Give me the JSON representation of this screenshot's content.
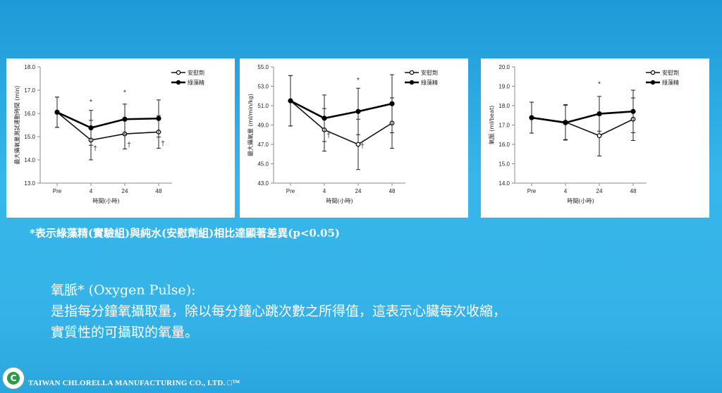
{
  "chart_data": [
    {
      "type": "line",
      "ylabel": "最大攝氧量測試運動時間 (min)",
      "xlabel": "時間(小時)",
      "categories": [
        "Pre",
        "4",
        "24",
        "48"
      ],
      "ylim": [
        13.0,
        18.0
      ],
      "yticks": [
        "13.0",
        "14.0",
        "15.0",
        "16.0",
        "17.0",
        "18.0"
      ],
      "legend_position": "top-right",
      "series": [
        {
          "name": "安慰劑",
          "marker": "open-circle",
          "values": [
            16.05,
            14.85,
            15.12,
            15.2
          ],
          "err": [
            0.65,
            0.85,
            0.65,
            0.7
          ]
        },
        {
          "name": "綠藻精",
          "marker": "filled-circle",
          "values": [
            16.05,
            15.38,
            15.75,
            15.78
          ],
          "err": [
            0.65,
            0.75,
            0.65,
            0.8
          ]
        }
      ],
      "annotations": [
        {
          "text": "*",
          "x": "4",
          "y": 16.4
        },
        {
          "text": "*",
          "x": "24",
          "y": 16.8
        },
        {
          "text": "†",
          "x": "4",
          "y": 14.4
        },
        {
          "text": "†",
          "x": "24",
          "y": 14.55
        },
        {
          "text": "†",
          "x": "48",
          "y": 14.6
        }
      ]
    },
    {
      "type": "line",
      "ylabel": "最大攝氧量 (ml/min/kg)",
      "xlabel": "時間(小時)",
      "categories": [
        "Pre",
        "4",
        "24",
        "48"
      ],
      "ylim": [
        43.0,
        55.0
      ],
      "yticks": [
        "43.0",
        "45.0",
        "47.0",
        "49.0",
        "51.0",
        "53.0",
        "55.0"
      ],
      "legend_position": "top-right",
      "series": [
        {
          "name": "安慰劑",
          "marker": "open-circle",
          "values": [
            51.5,
            48.5,
            47.0,
            49.2
          ],
          "err": [
            2.6,
            2.2,
            2.6,
            2.6
          ]
        },
        {
          "name": "綠藻精",
          "marker": "filled-circle",
          "values": [
            51.5,
            49.7,
            50.4,
            51.2
          ],
          "err": [
            2.6,
            2.4,
            2.4,
            3.0
          ]
        }
      ],
      "annotations": [
        {
          "text": "*",
          "x": "24",
          "y": 53.4
        },
        {
          "text": "†",
          "x": "4",
          "y": 47.7
        },
        {
          "text": "†",
          "x": "24",
          "y": 46.6
        }
      ]
    },
    {
      "type": "line",
      "ylabel": "氧脈 (ml/beat)",
      "xlabel": "時間(小時)",
      "categories": [
        "Pre",
        "4",
        "24",
        "48"
      ],
      "ylim": [
        14.0,
        20.0
      ],
      "yticks": [
        "14.0",
        "15.0",
        "16.0",
        "17.0",
        "18.0",
        "19.0",
        "20.0"
      ],
      "legend_position": "top-right",
      "series": [
        {
          "name": "安慰劑",
          "marker": "open-circle",
          "values": [
            17.38,
            17.15,
            16.45,
            17.3
          ],
          "err": [
            0.8,
            0.9,
            1.05,
            1.1
          ]
        },
        {
          "name": "綠藻精",
          "marker": "filled-circle",
          "values": [
            17.38,
            17.12,
            17.58,
            17.7
          ],
          "err": [
            0.8,
            0.9,
            0.9,
            1.1
          ]
        }
      ],
      "annotations": [
        {
          "text": "*",
          "x": "24",
          "y": 19.0
        }
      ]
    }
  ],
  "footnote": "*表示綠藻精(實驗組)與純水(安慰劑組)相比達顯著差異(p<0.05)",
  "definition": {
    "title": "氧脈* (Oxygen Pulse):",
    "line1": "是指每分鐘氧攝取量，除以每分鐘心跳次數之所得值，這表示心臟每次收縮，",
    "line2": "實質性的可攝取的氧量。"
  },
  "footer": {
    "company": "TAIWAN CHLORELLA MANUFACTURING CO., LTD. □™",
    "logo_icon": "chlorella-logo-icon"
  },
  "colors": {
    "background": "#2aa6de",
    "panel": "#ffffff",
    "series_line": "#000000"
  }
}
